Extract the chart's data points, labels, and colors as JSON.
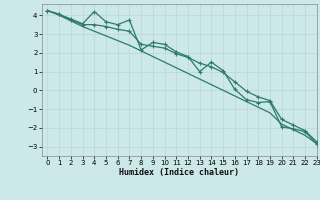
{
  "xlabel": "Humidex (Indice chaleur)",
  "background_color": "#cce8e8",
  "line_color": "#2d7a6e",
  "grid_color": "#b8d8d8",
  "xlim": [
    -0.5,
    23
  ],
  "ylim": [
    -3.5,
    4.6
  ],
  "yticks": [
    -3,
    -2,
    -1,
    0,
    1,
    2,
    3,
    4
  ],
  "xticks": [
    0,
    1,
    2,
    3,
    4,
    5,
    6,
    7,
    8,
    9,
    10,
    11,
    12,
    13,
    14,
    15,
    16,
    17,
    18,
    19,
    20,
    21,
    22,
    23
  ],
  "x_data": [
    0,
    1,
    2,
    3,
    4,
    5,
    6,
    7,
    8,
    9,
    10,
    11,
    12,
    13,
    14,
    15,
    16,
    17,
    18,
    19,
    20,
    21,
    22,
    23
  ],
  "y_line1": [
    4.25,
    4.05,
    3.8,
    3.55,
    4.2,
    3.65,
    3.5,
    3.75,
    2.15,
    2.55,
    2.45,
    2.05,
    1.8,
    1.0,
    1.5,
    1.05,
    0.05,
    -0.5,
    -0.65,
    -0.6,
    -1.95,
    -2.05,
    -2.2,
    -2.85
  ],
  "y_line2": [
    4.25,
    4.05,
    3.75,
    3.5,
    3.5,
    3.4,
    3.25,
    3.15,
    2.45,
    2.35,
    2.25,
    1.95,
    1.75,
    1.45,
    1.25,
    0.95,
    0.45,
    -0.05,
    -0.35,
    -0.55,
    -1.55,
    -1.85,
    -2.15,
    -2.75
  ],
  "y_line3": [
    4.25,
    4.0,
    3.7,
    3.4,
    3.15,
    2.9,
    2.65,
    2.4,
    2.1,
    1.8,
    1.5,
    1.2,
    0.9,
    0.6,
    0.3,
    0.0,
    -0.3,
    -0.6,
    -0.9,
    -1.2,
    -1.8,
    -2.1,
    -2.4,
    -2.85
  ]
}
